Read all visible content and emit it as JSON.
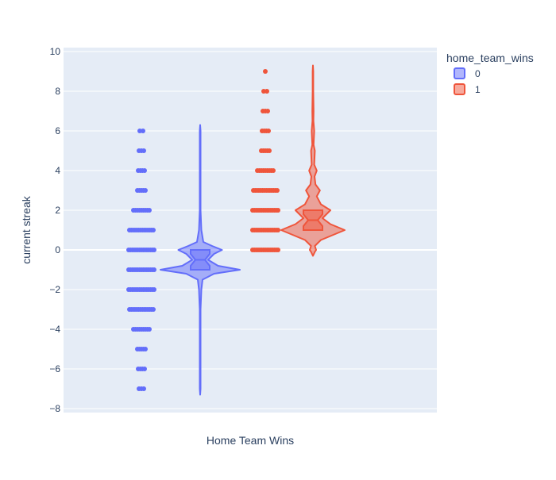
{
  "chart_data": {
    "type": "violin",
    "xlabel": "Home Team Wins",
    "ylabel": "current streak",
    "ylim": [
      -8.2,
      10.2
    ],
    "y_ticks": [
      -8,
      -6,
      -4,
      -2,
      0,
      2,
      4,
      6,
      8,
      10
    ],
    "grid": true,
    "legend": {
      "title": "home_team_wins",
      "placement": "top-right"
    },
    "series": [
      {
        "name": "0",
        "color": "#636efa",
        "points": [
          -7,
          -6,
          -5,
          -4,
          -3,
          -2,
          -1,
          0,
          1,
          2,
          3,
          4,
          5,
          6
        ],
        "box": {
          "q1": -1,
          "median": -0.5,
          "q3": 0
        },
        "violin_range": [
          -7.3,
          6.3
        ],
        "density_profile": [
          [
            -7.3,
            0.0
          ],
          [
            -7,
            0.01
          ],
          [
            -6,
            0.01
          ],
          [
            -5,
            0.01
          ],
          [
            -4,
            0.01
          ],
          [
            -3,
            0.01
          ],
          [
            -2,
            0.03
          ],
          [
            -1.5,
            0.06
          ],
          [
            -1.2,
            0.35
          ],
          [
            -1,
            1.0
          ],
          [
            -0.8,
            0.45
          ],
          [
            -0.5,
            0.2
          ],
          [
            -0.2,
            0.35
          ],
          [
            0,
            0.55
          ],
          [
            0.2,
            0.3
          ],
          [
            0.4,
            0.08
          ],
          [
            1,
            0.03
          ],
          [
            2,
            0.01
          ],
          [
            3,
            0.01
          ],
          [
            4,
            0.01
          ],
          [
            5,
            0.01
          ],
          [
            6,
            0.01
          ],
          [
            6.3,
            0.0
          ]
        ]
      },
      {
        "name": "1",
        "color": "#ef553b",
        "points": [
          0,
          1,
          2,
          3,
          4,
          5,
          6,
          7,
          8,
          9
        ],
        "box": {
          "q1": 1,
          "median": 1.5,
          "q3": 2
        },
        "violin_range": [
          -0.3,
          9.3
        ],
        "density_profile": [
          [
            -0.3,
            0.0
          ],
          [
            -0.1,
            0.06
          ],
          [
            0,
            0.1
          ],
          [
            0.2,
            0.06
          ],
          [
            0.5,
            0.25
          ],
          [
            0.8,
            0.7
          ],
          [
            1,
            1.0
          ],
          [
            1.3,
            0.55
          ],
          [
            1.6,
            0.3
          ],
          [
            2,
            0.55
          ],
          [
            2.3,
            0.25
          ],
          [
            2.7,
            0.12
          ],
          [
            3,
            0.22
          ],
          [
            3.3,
            0.08
          ],
          [
            3.7,
            0.05
          ],
          [
            4,
            0.12
          ],
          [
            4.3,
            0.04
          ],
          [
            5,
            0.06
          ],
          [
            5.3,
            0.02
          ],
          [
            6,
            0.04
          ],
          [
            6.5,
            0.015
          ],
          [
            7,
            0.02
          ],
          [
            8,
            0.01
          ],
          [
            9,
            0.01
          ],
          [
            9.3,
            0.0
          ]
        ]
      }
    ]
  }
}
